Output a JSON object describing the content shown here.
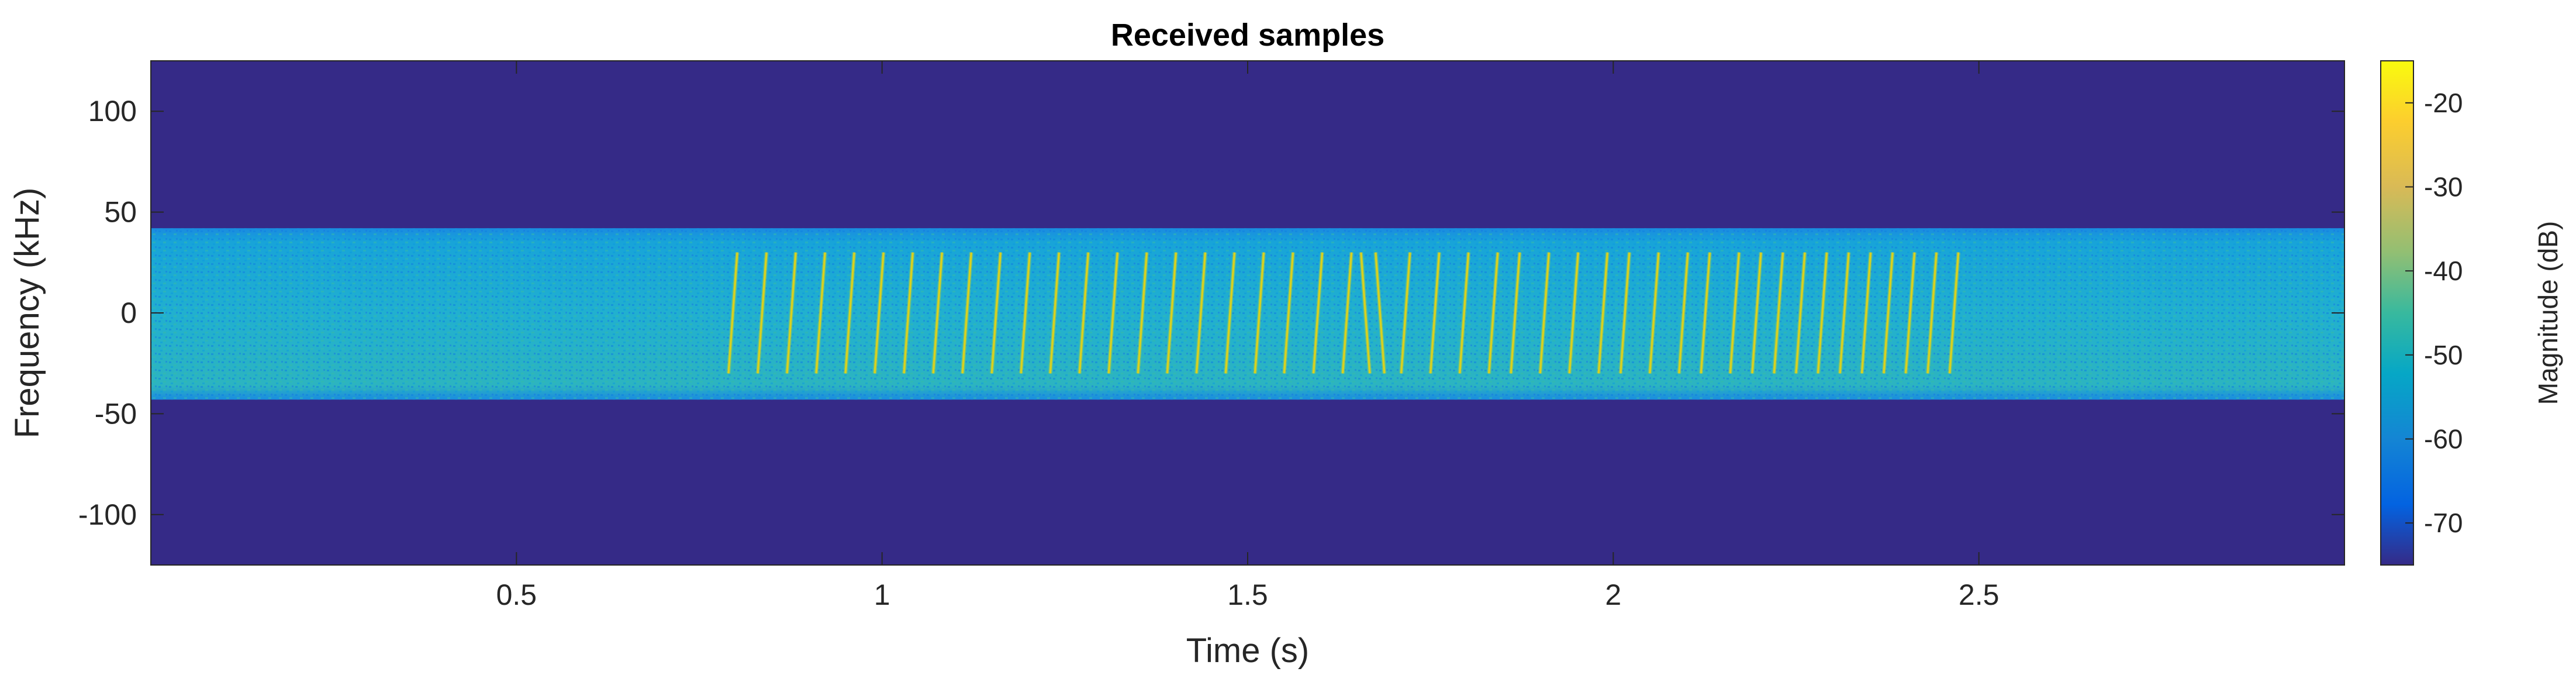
{
  "chart_data": {
    "type": "heatmap",
    "title": "Received samples",
    "xlabel": "Time (s)",
    "ylabel": "Frequency (kHz)",
    "xlim": [
      0,
      3
    ],
    "ylim": [
      -125,
      125
    ],
    "xticks": [
      0.5,
      1,
      1.5,
      2,
      2.5
    ],
    "xtick_labels": [
      "0.5",
      "1",
      "1.5",
      "2",
      "2.5"
    ],
    "yticks": [
      100,
      50,
      0,
      -50,
      -100
    ],
    "ytick_labels": [
      "100",
      "50",
      "0",
      "-50",
      "-100"
    ],
    "colorbar": {
      "label": "Magnitude (dB)",
      "range": [
        -75,
        -15
      ],
      "ticks": [
        -20,
        -30,
        -40,
        -50,
        -60,
        -70
      ],
      "tick_labels": [
        "-20",
        "-30",
        "-40",
        "-50",
        "-60",
        "-70"
      ],
      "colormap": "parula"
    },
    "background_level_db": -72,
    "noise_band": {
      "freq_range_khz": [
        -43,
        42
      ],
      "level_db": -50
    },
    "chirp_signal": {
      "time_range_s": [
        0.79,
        2.5
      ],
      "freq_range_khz": [
        -30,
        30
      ],
      "peak_level_db": -22,
      "sweep_duration_s": 0.012,
      "chirps": [
        {
          "start_s": 0.79,
          "dir": "up"
        },
        {
          "start_s": 0.83,
          "dir": "up"
        },
        {
          "start_s": 0.87,
          "dir": "up"
        },
        {
          "start_s": 0.91,
          "dir": "up"
        },
        {
          "start_s": 0.95,
          "dir": "up"
        },
        {
          "start_s": 0.99,
          "dir": "up"
        },
        {
          "start_s": 1.03,
          "dir": "up"
        },
        {
          "start_s": 1.07,
          "dir": "up"
        },
        {
          "start_s": 1.11,
          "dir": "up"
        },
        {
          "start_s": 1.15,
          "dir": "up"
        },
        {
          "start_s": 1.19,
          "dir": "up"
        },
        {
          "start_s": 1.23,
          "dir": "up"
        },
        {
          "start_s": 1.27,
          "dir": "up"
        },
        {
          "start_s": 1.31,
          "dir": "up"
        },
        {
          "start_s": 1.35,
          "dir": "up"
        },
        {
          "start_s": 1.39,
          "dir": "up"
        },
        {
          "start_s": 1.43,
          "dir": "up"
        },
        {
          "start_s": 1.47,
          "dir": "up"
        },
        {
          "start_s": 1.51,
          "dir": "up"
        },
        {
          "start_s": 1.55,
          "dir": "up"
        },
        {
          "start_s": 1.59,
          "dir": "up"
        },
        {
          "start_s": 1.63,
          "dir": "up"
        },
        {
          "start_s": 1.655,
          "dir": "down"
        },
        {
          "start_s": 1.675,
          "dir": "down"
        },
        {
          "start_s": 1.71,
          "dir": "up"
        },
        {
          "start_s": 1.75,
          "dir": "up"
        },
        {
          "start_s": 1.79,
          "dir": "up"
        },
        {
          "start_s": 1.83,
          "dir": "up"
        },
        {
          "start_s": 1.86,
          "dir": "up"
        },
        {
          "start_s": 1.9,
          "dir": "up"
        },
        {
          "start_s": 1.94,
          "dir": "up"
        },
        {
          "start_s": 1.98,
          "dir": "up"
        },
        {
          "start_s": 2.01,
          "dir": "up"
        },
        {
          "start_s": 2.05,
          "dir": "up"
        },
        {
          "start_s": 2.09,
          "dir": "up"
        },
        {
          "start_s": 2.12,
          "dir": "up"
        },
        {
          "start_s": 2.16,
          "dir": "up"
        },
        {
          "start_s": 2.19,
          "dir": "up"
        },
        {
          "start_s": 2.22,
          "dir": "up"
        },
        {
          "start_s": 2.25,
          "dir": "up"
        },
        {
          "start_s": 2.28,
          "dir": "up"
        },
        {
          "start_s": 2.31,
          "dir": "up"
        },
        {
          "start_s": 2.34,
          "dir": "up"
        },
        {
          "start_s": 2.37,
          "dir": "up"
        },
        {
          "start_s": 2.4,
          "dir": "up"
        },
        {
          "start_s": 2.43,
          "dir": "up"
        },
        {
          "start_s": 2.46,
          "dir": "up"
        }
      ]
    },
    "colors": {
      "background": "#352A87",
      "noise_band": "#1BA3D4",
      "chirp": "#D9D11F",
      "axis": "#262626"
    }
  }
}
